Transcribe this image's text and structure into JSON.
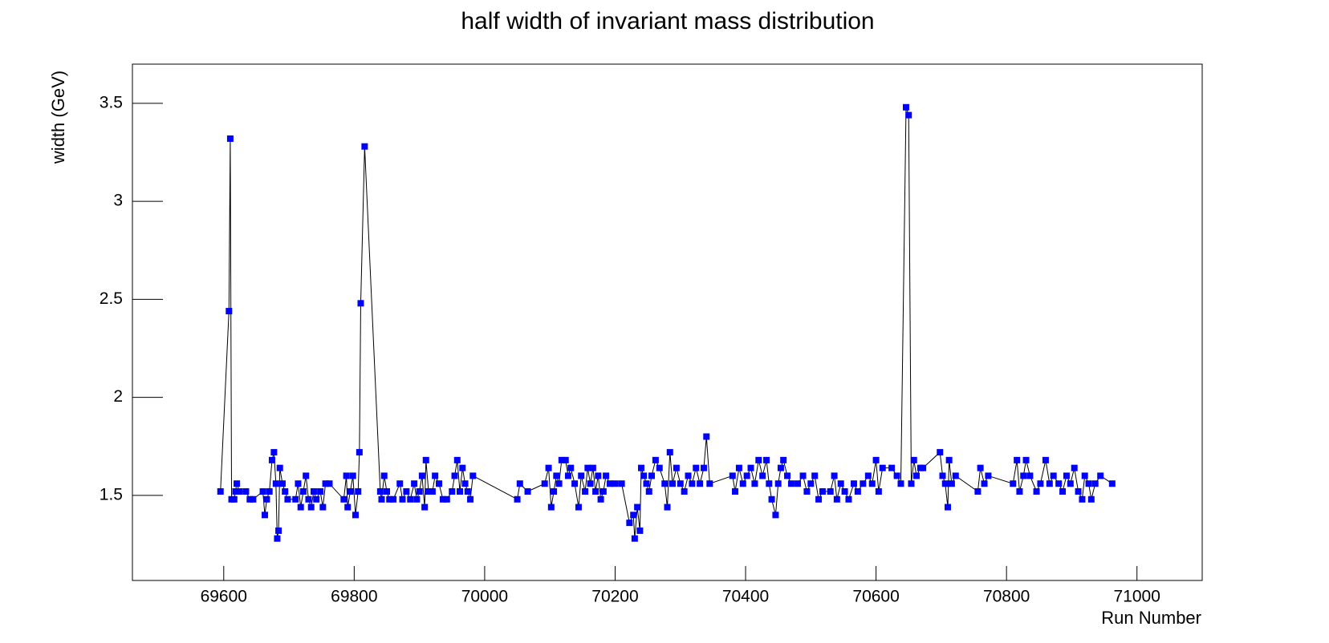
{
  "chart_data": {
    "type": "line",
    "title": "half width of invariant mass distribution",
    "x_label": "Run Number",
    "y_label": "width (GeV)",
    "xlim": [
      69460,
      71100
    ],
    "ylim": [
      1.066,
      3.7
    ],
    "xticks": [
      69600,
      69800,
      70000,
      70200,
      70400,
      70600,
      70800,
      71000
    ],
    "yticks": [
      1.5,
      2,
      2.5,
      3,
      3.5
    ],
    "series": [
      {
        "color": "#0000ff",
        "x": [
          69595,
          69608,
          69610,
          69612,
          69616,
          69618,
          69620,
          69624,
          69634,
          69640,
          69645,
          69660,
          69663,
          69666,
          69670,
          69674,
          69677,
          69680,
          69682,
          69684,
          69686,
          69690,
          69694,
          69698,
          69710,
          69714,
          69718,
          69722,
          69726,
          69730,
          69734,
          69738,
          69742,
          69748,
          69752,
          69756,
          69762,
          69784,
          69788,
          69790,
          69794,
          69798,
          69802,
          69806,
          69808,
          69810,
          69816,
          69840,
          69842,
          69846,
          69850,
          69854,
          69860,
          69870,
          69874,
          69880,
          69886,
          69892,
          69896,
          69900,
          69904,
          69908,
          69910,
          69914,
          69920,
          69924,
          69930,
          69936,
          69942,
          69950,
          69954,
          69958,
          69962,
          69966,
          69970,
          69974,
          69978,
          69982,
          70050,
          70054,
          70066,
          70092,
          70098,
          70102,
          70106,
          70110,
          70114,
          70118,
          70124,
          70128,
          70132,
          70138,
          70144,
          70148,
          70154,
          70158,
          70162,
          70166,
          70170,
          70174,
          70178,
          70182,
          70186,
          70192,
          70200,
          70210,
          70222,
          70228,
          70230,
          70234,
          70238,
          70240,
          70244,
          70248,
          70252,
          70256,
          70262,
          70268,
          70276,
          70280,
          70284,
          70288,
          70294,
          70300,
          70306,
          70312,
          70318,
          70324,
          70330,
          70336,
          70340,
          70345,
          70380,
          70384,
          70390,
          70396,
          70402,
          70408,
          70414,
          70420,
          70426,
          70432,
          70436,
          70440,
          70446,
          70450,
          70454,
          70458,
          70464,
          70470,
          70480,
          70488,
          70494,
          70500,
          70506,
          70512,
          70518,
          70530,
          70536,
          70540,
          70546,
          70552,
          70558,
          70566,
          70572,
          70580,
          70588,
          70594,
          70600,
          70604,
          70610,
          70624,
          70632,
          70638,
          70646,
          70650,
          70654,
          70658,
          70662,
          70668,
          70672,
          70698,
          70702,
          70706,
          70710,
          70712,
          70716,
          70722,
          70756,
          70760,
          70766,
          70772,
          70810,
          70816,
          70820,
          70826,
          70830,
          70836,
          70846,
          70852,
          70860,
          70866,
          70872,
          70880,
          70886,
          70892,
          70898,
          70904,
          70910,
          70916,
          70920,
          70926,
          70930,
          70936,
          70944,
          70962
        ],
        "values": [
          1.52,
          2.44,
          3.32,
          1.48,
          1.48,
          1.52,
          1.56,
          1.52,
          1.52,
          1.48,
          1.48,
          1.52,
          1.4,
          1.48,
          1.52,
          1.68,
          1.72,
          1.56,
          1.28,
          1.32,
          1.64,
          1.56,
          1.52,
          1.48,
          1.48,
          1.56,
          1.44,
          1.52,
          1.6,
          1.48,
          1.44,
          1.52,
          1.48,
          1.52,
          1.44,
          1.56,
          1.56,
          1.48,
          1.6,
          1.44,
          1.52,
          1.6,
          1.4,
          1.52,
          1.72,
          2.48,
          3.28,
          1.52,
          1.48,
          1.6,
          1.52,
          1.48,
          1.48,
          1.56,
          1.48,
          1.52,
          1.48,
          1.56,
          1.48,
          1.52,
          1.6,
          1.44,
          1.68,
          1.52,
          1.52,
          1.6,
          1.56,
          1.48,
          1.48,
          1.52,
          1.6,
          1.68,
          1.52,
          1.64,
          1.56,
          1.52,
          1.48,
          1.6,
          1.48,
          1.56,
          1.52,
          1.56,
          1.64,
          1.44,
          1.52,
          1.6,
          1.56,
          1.68,
          1.68,
          1.6,
          1.64,
          1.56,
          1.44,
          1.6,
          1.52,
          1.64,
          1.56,
          1.64,
          1.52,
          1.6,
          1.48,
          1.52,
          1.6,
          1.56,
          1.56,
          1.56,
          1.36,
          1.4,
          1.28,
          1.44,
          1.32,
          1.64,
          1.6,
          1.56,
          1.52,
          1.6,
          1.68,
          1.64,
          1.56,
          1.44,
          1.72,
          1.56,
          1.64,
          1.56,
          1.52,
          1.6,
          1.56,
          1.64,
          1.56,
          1.64,
          1.8,
          1.56,
          1.6,
          1.52,
          1.64,
          1.56,
          1.6,
          1.64,
          1.56,
          1.68,
          1.6,
          1.68,
          1.56,
          1.48,
          1.4,
          1.56,
          1.64,
          1.68,
          1.6,
          1.56,
          1.56,
          1.6,
          1.52,
          1.56,
          1.6,
          1.48,
          1.52,
          1.52,
          1.6,
          1.48,
          1.56,
          1.52,
          1.48,
          1.56,
          1.52,
          1.56,
          1.6,
          1.56,
          1.68,
          1.52,
          1.64,
          1.64,
          1.6,
          1.56,
          3.48,
          3.44,
          1.56,
          1.68,
          1.6,
          1.64,
          1.64,
          1.72,
          1.6,
          1.56,
          1.44,
          1.68,
          1.56,
          1.6,
          1.52,
          1.64,
          1.56,
          1.6,
          1.56,
          1.68,
          1.52,
          1.6,
          1.68,
          1.6,
          1.52,
          1.56,
          1.68,
          1.56,
          1.6,
          1.56,
          1.52,
          1.6,
          1.56,
          1.64,
          1.52,
          1.48,
          1.6,
          1.56,
          1.48,
          1.56,
          1.6,
          1.56
        ]
      }
    ]
  }
}
